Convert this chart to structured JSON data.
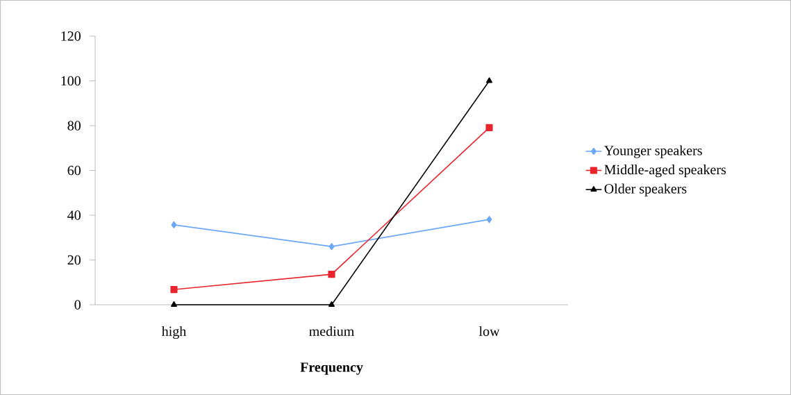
{
  "chart_data": {
    "type": "line",
    "xlabel": "Frequency",
    "categories": [
      "high",
      "medium",
      "low"
    ],
    "series": [
      {
        "name": "Younger speakers",
        "color": "#6aa8f7",
        "marker": "diamond",
        "values": [
          35.7,
          26.0,
          38.1
        ]
      },
      {
        "name": "Middle-aged speakers",
        "color": "#e8242c",
        "marker": "square",
        "values": [
          6.8,
          13.6,
          79.1
        ]
      },
      {
        "name": "Older speakers",
        "color": "#000000",
        "marker": "triangle",
        "values": [
          0,
          0,
          100
        ]
      }
    ],
    "ylim": [
      0,
      120
    ],
    "yticks": [
      0,
      20,
      40,
      60,
      80,
      100,
      120
    ],
    "grid": false,
    "legend": "right",
    "line_style": "solid"
  }
}
